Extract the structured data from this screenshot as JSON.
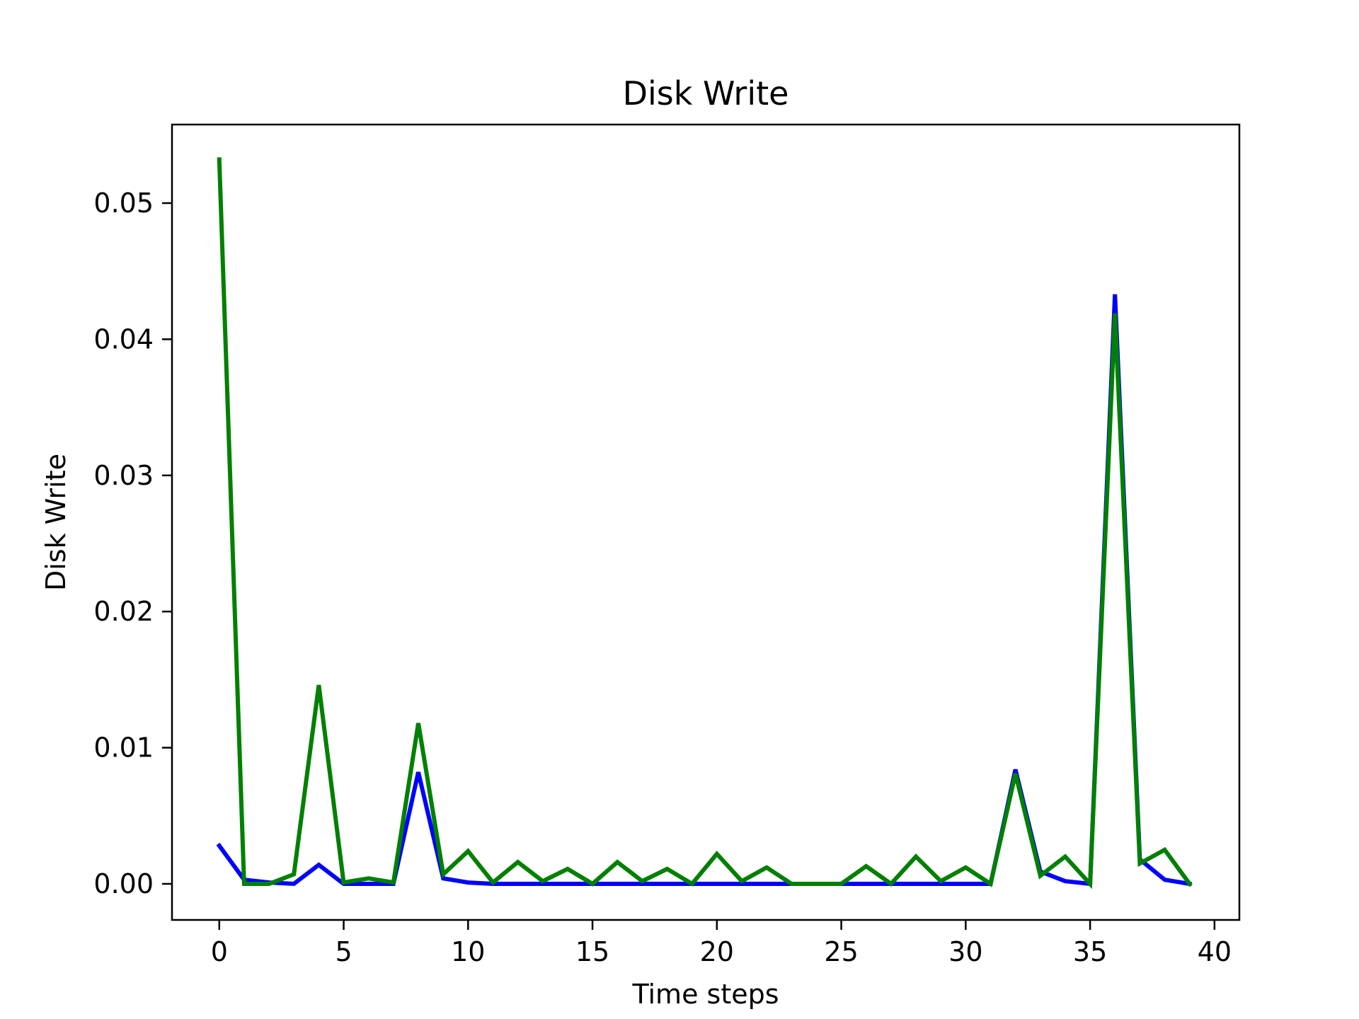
{
  "chart_data": {
    "type": "line",
    "title": "Disk Write",
    "xlabel": "Time steps",
    "ylabel": "Disk Write",
    "xlim": [
      -1.9,
      41.0
    ],
    "ylim": [
      -0.00265,
      0.05577
    ],
    "x_ticks": [
      0,
      5,
      10,
      15,
      20,
      25,
      30,
      35,
      40
    ],
    "x_tick_labels": [
      "0",
      "5",
      "10",
      "15",
      "20",
      "25",
      "30",
      "35",
      "40"
    ],
    "y_ticks": [
      0.0,
      0.01,
      0.02,
      0.03,
      0.04,
      0.05
    ],
    "y_tick_labels": [
      "0.00",
      "0.01",
      "0.02",
      "0.03",
      "0.04",
      "0.05"
    ],
    "grid": false,
    "legend": "none",
    "x": [
      0,
      1,
      2,
      3,
      4,
      5,
      6,
      7,
      8,
      9,
      10,
      11,
      12,
      13,
      14,
      15,
      16,
      17,
      18,
      19,
      20,
      21,
      22,
      23,
      24,
      25,
      26,
      27,
      28,
      29,
      30,
      31,
      32,
      33,
      34,
      35,
      36,
      37,
      38,
      39
    ],
    "series": [
      {
        "color": "#0000ff",
        "values": [
          0.0028,
          0.0003,
          0.0001,
          0.0,
          0.0014,
          0.0,
          0.0,
          0.0,
          0.0082,
          0.0004,
          0.0001,
          0.0,
          0.0,
          0.0,
          0.0,
          0.0,
          0.0,
          0.0,
          0.0,
          0.0,
          0.0,
          0.0,
          0.0,
          0.0,
          0.0,
          0.0,
          0.0,
          0.0,
          0.0,
          0.0,
          0.0,
          0.0,
          0.0084,
          0.0009,
          0.0002,
          0.0,
          0.0433,
          0.0018,
          0.0003,
          0.0
        ]
      },
      {
        "color": "#008000",
        "values": [
          0.0532,
          0.0,
          0.0,
          0.0007,
          0.0146,
          0.0001,
          0.0004,
          0.0001,
          0.0118,
          0.0007,
          0.0024,
          0.0001,
          0.0016,
          0.0002,
          0.0011,
          0.0,
          0.0016,
          0.0002,
          0.0011,
          0.0,
          0.0022,
          0.0002,
          0.0012,
          0.0,
          0.0,
          0.0,
          0.0013,
          0.0,
          0.002,
          0.0002,
          0.0012,
          0.0,
          0.0081,
          0.0006,
          0.002,
          0.0,
          0.0419,
          0.0015,
          0.0025,
          0.0
        ]
      }
    ]
  }
}
